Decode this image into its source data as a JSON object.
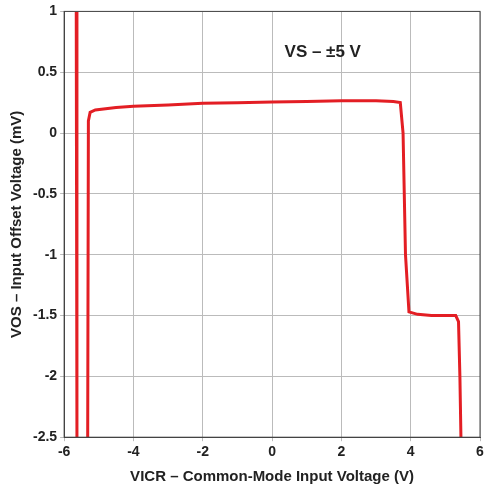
{
  "chart_data": {
    "type": "line",
    "x_label": "VICR – Common-Mode Input Voltage (V)",
    "y_label": "VOS – Input Offset Voltage (mV)",
    "annotations": [
      "VS – ±5 V"
    ],
    "x": [
      -5.65,
      -5.63,
      null,
      -5.32,
      -5.3,
      -5.25,
      -5.1,
      -4.5,
      -4,
      -3,
      -2,
      -1,
      0,
      1,
      2,
      3,
      3.5,
      3.7,
      3.78,
      3.85,
      3.95,
      4.2,
      4.6,
      5,
      5.3,
      5.38,
      5.42,
      5.45
    ],
    "values": [
      1,
      -2.5,
      null,
      -2.5,
      0.1,
      0.17,
      0.19,
      0.21,
      0.22,
      0.23,
      0.245,
      0.25,
      0.255,
      0.26,
      0.265,
      0.265,
      0.26,
      0.25,
      0,
      -1,
      -1.47,
      -1.49,
      -1.5,
      -1.5,
      -1.5,
      -1.55,
      -2,
      -2.5
    ],
    "color": "#e31e24",
    "xlim": [
      -6,
      6
    ],
    "xticks": [
      -6,
      -4,
      -2,
      0,
      2,
      4,
      6
    ],
    "ylim": [
      -2.5,
      1
    ],
    "yticks": [
      -2.5,
      -2,
      -1.5,
      -1,
      -0.5,
      0,
      0.5,
      1
    ],
    "grid": true
  }
}
